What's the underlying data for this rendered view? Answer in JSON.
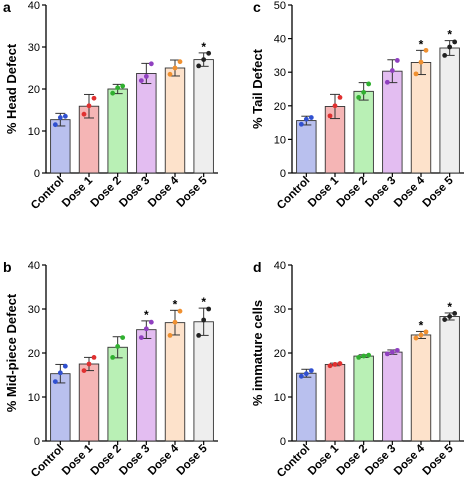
{
  "chart_data": [
    {
      "type": "bar",
      "panel_label": "a",
      "ylabel": "% Head Defect",
      "ylim": [
        0,
        40
      ],
      "yticks": [
        0,
        10,
        20,
        30,
        40
      ],
      "categories": [
        "Control",
        "Dose 1",
        "Dose 2",
        "Dose 3",
        "Dose 4",
        "Dose 5"
      ],
      "values": [
        12.7,
        15.9,
        20.0,
        23.7,
        25.0,
        27.0
      ],
      "errors": [
        1.5,
        2.8,
        1.1,
        2.4,
        1.9,
        1.6
      ],
      "points": [
        [
          11.5,
          13.2,
          13.5
        ],
        [
          14.0,
          16.0,
          17.8
        ],
        [
          19.0,
          20.3,
          20.7
        ],
        [
          22.0,
          23.0,
          26.0
        ],
        [
          23.5,
          25.0,
          26.5
        ],
        [
          25.5,
          27.0,
          28.5
        ]
      ],
      "significance": [
        "",
        "",
        "",
        "",
        "",
        "*"
      ],
      "bar_colors": [
        "#b9c0ee",
        "#f5b5b5",
        "#b9f0b5",
        "#e3bdf1",
        "#fde2cb",
        "#eeeeee"
      ],
      "point_colors": [
        "#3050d0",
        "#e03030",
        "#30b030",
        "#9040c0",
        "#f09030",
        "#222222"
      ],
      "grid": false
    },
    {
      "type": "bar",
      "panel_label": "c",
      "ylabel": "% Tail Defect",
      "ylim": [
        0,
        50
      ],
      "yticks": [
        0,
        10,
        20,
        30,
        40,
        50
      ],
      "categories": [
        "Control",
        "Dose 1",
        "Dose 2",
        "Dose 3",
        "Dose 4",
        "Dose 5"
      ],
      "values": [
        15.6,
        19.8,
        24.3,
        30.3,
        32.9,
        37.2
      ],
      "errors": [
        1.3,
        3.6,
        2.6,
        3.4,
        3.6,
        2.2
      ],
      "points": [
        [
          14.5,
          16.0,
          16.5
        ],
        [
          17.0,
          20.0,
          22.5
        ],
        [
          22.5,
          24.0,
          26.5
        ],
        [
          27.0,
          30.5,
          33.5
        ],
        [
          29.5,
          33.0,
          36.5
        ],
        [
          35.0,
          37.5,
          39.0
        ]
      ],
      "significance": [
        "",
        "",
        "",
        "",
        "*",
        "*"
      ],
      "bar_colors": [
        "#b9c0ee",
        "#f5b5b5",
        "#b9f0b5",
        "#e3bdf1",
        "#fde2cb",
        "#eeeeee"
      ],
      "point_colors": [
        "#3050d0",
        "#e03030",
        "#30b030",
        "#9040c0",
        "#f09030",
        "#222222"
      ],
      "grid": false
    },
    {
      "type": "bar",
      "panel_label": "b",
      "ylabel": "% Mid-piece Defect",
      "ylim": [
        0,
        40
      ],
      "yticks": [
        0,
        10,
        20,
        30,
        40
      ],
      "categories": [
        "Control",
        "Dose 1",
        "Dose 2",
        "Dose 3",
        "Dose 4",
        "Dose 5"
      ],
      "values": [
        15.3,
        17.5,
        21.3,
        25.3,
        26.9,
        27.1
      ],
      "errors": [
        2.1,
        1.5,
        2.4,
        2.0,
        2.8,
        3.1
      ],
      "points": [
        [
          13.5,
          15.5,
          17.0
        ],
        [
          16.0,
          17.5,
          19.0
        ],
        [
          19.0,
          21.5,
          23.5
        ],
        [
          23.5,
          25.5,
          27.0
        ],
        [
          24.0,
          27.0,
          29.5
        ],
        [
          24.0,
          27.5,
          30.0
        ]
      ],
      "significance": [
        "",
        "",
        "",
        "*",
        "*",
        "*"
      ],
      "bar_colors": [
        "#b9c0ee",
        "#f5b5b5",
        "#b9f0b5",
        "#e3bdf1",
        "#fde2cb",
        "#eeeeee"
      ],
      "point_colors": [
        "#3050d0",
        "#e03030",
        "#30b030",
        "#9040c0",
        "#f09030",
        "#222222"
      ],
      "grid": false
    },
    {
      "type": "bar",
      "panel_label": "d",
      "ylabel": "% immature cells",
      "ylim": [
        0,
        40
      ],
      "yticks": [
        0,
        10,
        20,
        30,
        40
      ],
      "categories": [
        "Control",
        "Dose 1",
        "Dose 2",
        "Dose 3",
        "Dose 4",
        "Dose 5"
      ],
      "values": [
        15.4,
        17.4,
        19.3,
        20.2,
        24.1,
        28.3
      ],
      "errors": [
        0.9,
        0.3,
        0.3,
        0.5,
        0.8,
        0.8
      ],
      "points": [
        [
          14.7,
          15.3,
          16.0
        ],
        [
          17.1,
          17.4,
          17.6
        ],
        [
          19.0,
          19.3,
          19.5
        ],
        [
          19.8,
          20.2,
          20.6
        ],
        [
          23.4,
          24.1,
          24.8
        ],
        [
          27.6,
          28.3,
          29.0
        ]
      ],
      "significance": [
        "",
        "",
        "",
        "",
        "*",
        "*"
      ],
      "bar_colors": [
        "#b9c0ee",
        "#f5b5b5",
        "#b9f0b5",
        "#e3bdf1",
        "#fde2cb",
        "#eeeeee"
      ],
      "point_colors": [
        "#3050d0",
        "#e03030",
        "#30b030",
        "#9040c0",
        "#f09030",
        "#222222"
      ],
      "grid": false
    }
  ]
}
